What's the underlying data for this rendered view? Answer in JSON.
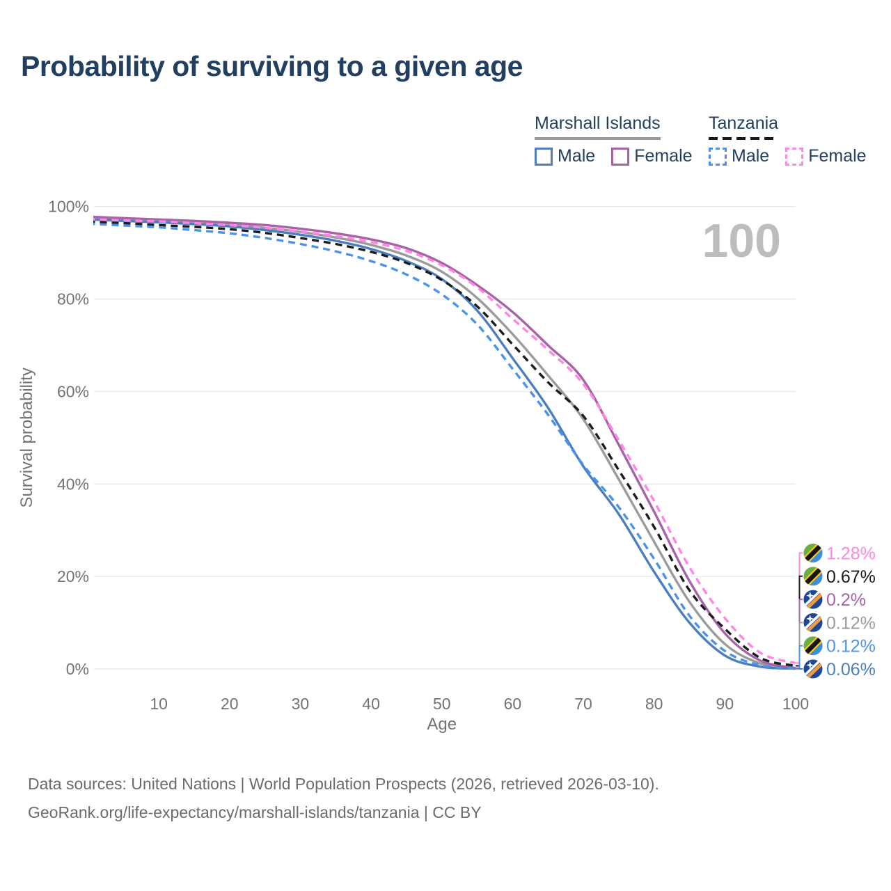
{
  "title": "Probability of surviving to a given age",
  "watermark": "100",
  "legend": {
    "groups": [
      {
        "name": "Marshall Islands",
        "style": "solid",
        "line_color": "#9a9a9a",
        "items": [
          {
            "label": "Male",
            "color": "#4a7ebc"
          },
          {
            "label": "Female",
            "color": "#a763a7"
          }
        ]
      },
      {
        "name": "Tanzania",
        "style": "dashed",
        "line_color": "#1a1a1a",
        "items": [
          {
            "label": "Male",
            "color": "#4b93ea"
          },
          {
            "label": "Female",
            "color": "#ff87e3"
          }
        ]
      }
    ]
  },
  "chart_data": {
    "type": "line",
    "title": "Probability of surviving to a given age",
    "xlabel": "Age",
    "ylabel": "Survival probability",
    "xlim": [
      0,
      100
    ],
    "ylim": [
      0,
      100
    ],
    "grid": "horizontal",
    "x_ticks": [
      {
        "value": 10,
        "label": "10"
      },
      {
        "value": 20,
        "label": "20"
      },
      {
        "value": 30,
        "label": "30"
      },
      {
        "value": 40,
        "label": "40"
      },
      {
        "value": 50,
        "label": "50"
      },
      {
        "value": 60,
        "label": "60"
      },
      {
        "value": 70,
        "label": "70"
      },
      {
        "value": 80,
        "label": "80"
      },
      {
        "value": 90,
        "label": "90"
      },
      {
        "value": 100,
        "label": "100"
      }
    ],
    "y_ticks": [
      {
        "value": 0,
        "label": "0%"
      },
      {
        "value": 20,
        "label": "20%"
      },
      {
        "value": 40,
        "label": "40%"
      },
      {
        "value": 60,
        "label": "60%"
      },
      {
        "value": 80,
        "label": "80%"
      },
      {
        "value": 100,
        "label": "100%"
      }
    ],
    "x": [
      0,
      5,
      10,
      15,
      20,
      25,
      30,
      35,
      40,
      45,
      50,
      55,
      60,
      65,
      70,
      75,
      80,
      85,
      90,
      95,
      100
    ],
    "series": [
      {
        "key": "mi_total",
        "name": "Marshall Islands",
        "sex": "total",
        "style": "solid",
        "color": "#9b9b9b",
        "values": [
          97.5,
          97.2,
          96.9,
          96.5,
          96.1,
          95.4,
          94.5,
          93.3,
          91.7,
          89.4,
          85.9,
          80.2,
          72.4,
          63.5,
          54.0,
          41.0,
          27.5,
          14.5,
          5.4,
          1.2,
          0.12
        ]
      },
      {
        "key": "mi_male",
        "name": "Marshall Islands",
        "sex": "male",
        "style": "solid",
        "color": "#4a7ebc",
        "values": [
          97.2,
          96.9,
          96.6,
          96.2,
          95.7,
          94.9,
          93.9,
          92.6,
          90.8,
          88.2,
          84.3,
          77.5,
          67.2,
          56.5,
          43.8,
          33.5,
          21.0,
          10.0,
          2.9,
          0.5,
          0.06
        ]
      },
      {
        "key": "mi_female",
        "name": "Marshall Islands",
        "sex": "female",
        "style": "solid",
        "color": "#a763a7",
        "values": [
          97.8,
          97.5,
          97.2,
          96.9,
          96.5,
          96.0,
          95.2,
          94.2,
          92.9,
          91.0,
          87.8,
          83.0,
          77.2,
          70.0,
          62.5,
          48.5,
          34.0,
          19.0,
          7.7,
          1.8,
          0.2
        ]
      },
      {
        "key": "tz_total",
        "name": "Tanzania",
        "sex": "total",
        "style": "dashed",
        "color": "#1c1c1c",
        "values": [
          96.7,
          96.4,
          96.0,
          95.6,
          95.1,
          94.3,
          93.2,
          91.9,
          90.2,
          87.8,
          84.1,
          78.4,
          70.2,
          62.0,
          54.7,
          43.0,
          30.7,
          17.0,
          8.7,
          2.4,
          0.67
        ]
      },
      {
        "key": "tz_male",
        "name": "Tanzania",
        "sex": "male",
        "style": "dashed",
        "color": "#4b93ea",
        "values": [
          96.3,
          95.9,
          95.5,
          94.9,
          94.2,
          93.2,
          91.9,
          90.3,
          88.2,
          85.3,
          81.0,
          74.5,
          64.9,
          55.0,
          44.1,
          35.0,
          23.8,
          11.5,
          3.9,
          0.8,
          0.12
        ]
      },
      {
        "key": "tz_female",
        "name": "Tanzania",
        "sex": "female",
        "style": "dashed",
        "color": "#ff87e3",
        "values": [
          97.3,
          97.0,
          96.8,
          96.4,
          96.0,
          95.4,
          94.6,
          93.6,
          92.3,
          90.4,
          87.3,
          82.5,
          75.7,
          69.0,
          61.6,
          49.5,
          36.3,
          22.0,
          11.0,
          3.5,
          1.28
        ]
      }
    ]
  },
  "end_labels": [
    {
      "label": "1.28%",
      "value": 1.28,
      "color": "#ff87e3",
      "country": "tanzania"
    },
    {
      "label": "0.67%",
      "value": 0.67,
      "color": "#1c1c1c",
      "country": "tanzania"
    },
    {
      "label": "0.2%",
      "value": 0.2,
      "color": "#a763a7",
      "country": "marshall-islands"
    },
    {
      "label": "0.12%",
      "value": 0.12,
      "color": "#9b9b9b",
      "country": "marshall-islands"
    },
    {
      "label": "0.12%",
      "value": 0.12,
      "color": "#4b93ea",
      "country": "tanzania"
    },
    {
      "label": "0.06%",
      "value": 0.06,
      "color": "#4a7ebc",
      "country": "marshall-islands"
    }
  ],
  "footer": {
    "line1": "Data sources: United Nations | World Population Prospects (2026, retrieved 2026-03-10).",
    "line2": "GeoRank.org/life-expectancy/marshall-islands/tanzania | CC BY"
  }
}
